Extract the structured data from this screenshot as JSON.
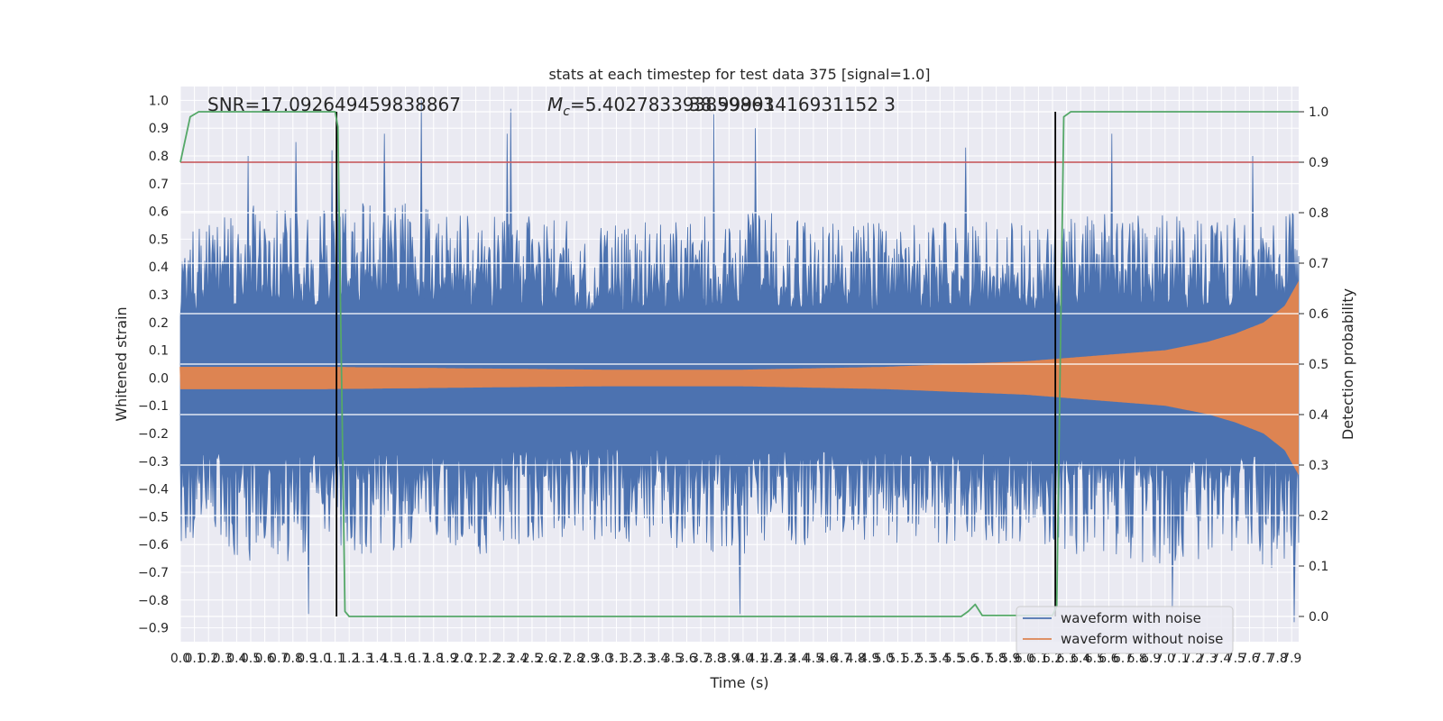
{
  "chart_data": {
    "type": "line",
    "title": "stats at each timestep for test data 375 [signal=1.0]",
    "xlabel": "Time (s)",
    "ylabel": "Whitened strain",
    "y2label": "Detection probability",
    "annotations": {
      "snr": "SNR=17.092649459838867",
      "mc_symbol": "M",
      "mc_subscript": "c",
      "mc_value": "=5.402783393859863",
      "overlap": "38.99991416931152 3"
    },
    "xlim": [
      0.0,
      7.95
    ],
    "ylim": [
      -0.95,
      1.05
    ],
    "y2lim": [
      -0.05,
      1.05
    ],
    "xticks": [
      "0.0",
      "0.1",
      "0.2",
      "0.3",
      "0.4",
      "0.5",
      "0.6",
      "0.7",
      "0.8",
      "0.9",
      "1.0",
      "1.1",
      "1.2",
      "1.3",
      "1.4",
      "1.5",
      "1.6",
      "1.7",
      "1.8",
      "1.9",
      "2.0",
      "2.1",
      "2.2",
      "2.3",
      "2.4",
      "2.5",
      "2.6",
      "2.7",
      "2.8",
      "2.9",
      "3.0",
      "3.1",
      "3.2",
      "3.3",
      "3.4",
      "3.5",
      "3.6",
      "3.7",
      "3.8",
      "3.9",
      "4.0",
      "4.1",
      "4.2",
      "4.3",
      "4.4",
      "4.5",
      "4.6",
      "4.7",
      "4.8",
      "4.9",
      "5.0",
      "5.1",
      "5.2",
      "5.3",
      "5.4",
      "5.5",
      "5.6",
      "5.7",
      "5.8",
      "5.9",
      "6.0",
      "6.1",
      "6.2",
      "6.3",
      "6.4",
      "6.5",
      "6.6",
      "6.7",
      "6.8",
      "6.9",
      "7.0",
      "7.1",
      "7.2",
      "7.3",
      "7.4",
      "7.5",
      "7.6",
      "7.7",
      "7.8",
      "7.9"
    ],
    "yticks": [
      "−0.9",
      "−0.8",
      "−0.7",
      "−0.6",
      "−0.5",
      "−0.4",
      "−0.3",
      "−0.2",
      "−0.1",
      "0.0",
      "0.1",
      "0.2",
      "0.3",
      "0.4",
      "0.5",
      "0.6",
      "0.7",
      "0.8",
      "0.9",
      "1.0"
    ],
    "y2ticks": [
      "0.0",
      "0.1",
      "0.2",
      "0.3",
      "0.4",
      "0.5",
      "0.6",
      "0.7",
      "0.8",
      "0.9",
      "1.0"
    ],
    "series": [
      {
        "name": "waveform with noise",
        "color": "#4c72b0",
        "axis": "left",
        "envelope": {
          "t": [
            0.0,
            0.5,
            1.0,
            1.5,
            2.0,
            2.5,
            3.0,
            3.5,
            4.0,
            4.5,
            5.0,
            5.5,
            6.0,
            6.5,
            7.0,
            7.5,
            7.95
          ],
          "upper_typical": [
            0.38,
            0.48,
            0.46,
            0.5,
            0.47,
            0.45,
            0.42,
            0.44,
            0.46,
            0.45,
            0.43,
            0.44,
            0.42,
            0.46,
            0.45,
            0.44,
            0.46
          ],
          "lower_typical": [
            -0.45,
            -0.52,
            -0.5,
            -0.48,
            -0.5,
            -0.46,
            -0.45,
            -0.47,
            -0.5,
            -0.46,
            -0.45,
            -0.47,
            -0.45,
            -0.5,
            -0.52,
            -0.5,
            -0.55
          ]
        },
        "peaks": [
          {
            "t": 0.48,
            "y": 0.8
          },
          {
            "t": 0.82,
            "y": 0.85
          },
          {
            "t": 0.91,
            "y": -0.85
          },
          {
            "t": 1.08,
            "y": 0.82
          },
          {
            "t": 1.12,
            "y": 0.8
          },
          {
            "t": 1.45,
            "y": 0.88
          },
          {
            "t": 1.71,
            "y": 1.0
          },
          {
            "t": 2.32,
            "y": 0.88
          },
          {
            "t": 2.35,
            "y": 0.97
          },
          {
            "t": 3.79,
            "y": 0.95
          },
          {
            "t": 3.98,
            "y": -0.85
          },
          {
            "t": 4.09,
            "y": 0.9
          },
          {
            "t": 5.58,
            "y": 0.83
          },
          {
            "t": 6.62,
            "y": 0.88
          },
          {
            "t": 7.05,
            "y": -0.83
          },
          {
            "t": 7.62,
            "y": 0.8
          },
          {
            "t": 7.92,
            "y": -0.88
          }
        ]
      },
      {
        "name": "waveform without noise",
        "color": "#dd8452",
        "axis": "left",
        "envelope": {
          "t": [
            0.0,
            1.0,
            2.0,
            3.0,
            4.0,
            5.0,
            5.5,
            6.0,
            6.5,
            7.0,
            7.3,
            7.5,
            7.7,
            7.85,
            7.95
          ],
          "amplitude": [
            0.04,
            0.04,
            0.035,
            0.03,
            0.03,
            0.04,
            0.05,
            0.06,
            0.08,
            0.1,
            0.13,
            0.16,
            0.2,
            0.26,
            0.35
          ]
        }
      },
      {
        "name": "detection probability",
        "color": "#55a868",
        "axis": "right",
        "t": [
          0.0,
          0.07,
          0.13,
          1.0,
          1.1,
          1.12,
          1.17,
          1.2,
          5.55,
          5.6,
          5.65,
          5.7,
          6.2,
          6.23,
          6.28,
          6.33,
          7.95
        ],
        "values": [
          0.9,
          0.99,
          1.0,
          1.0,
          1.0,
          0.97,
          0.01,
          0.0,
          0.0,
          0.01,
          0.024,
          0.002,
          0.002,
          0.02,
          0.99,
          1.0,
          1.0
        ]
      }
    ],
    "threshold": {
      "value": 0.9,
      "axis": "right",
      "color": "#c44e52"
    },
    "vlines": [
      1.11,
      6.22
    ],
    "vline_color": "#000000",
    "grid": true,
    "background": "#eaeaf2",
    "legend": {
      "placement": "lower right",
      "entries": [
        "waveform with noise",
        "waveform without noise"
      ]
    }
  }
}
